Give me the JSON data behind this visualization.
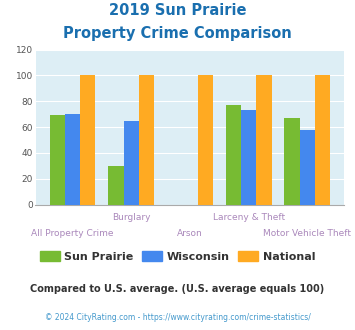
{
  "title_line1": "2019 Sun Prairie",
  "title_line2": "Property Crime Comparison",
  "title_color": "#1a6faf",
  "categories": [
    "All Property Crime",
    "Burglary",
    "Arson",
    "Larceny & Theft",
    "Motor Vehicle Theft"
  ],
  "x_labels_top": [
    "",
    "Burglary",
    "",
    "Larceny & Theft",
    ""
  ],
  "x_labels_bottom": [
    "All Property Crime",
    "",
    "Arson",
    "",
    "Motor Vehicle Theft"
  ],
  "sun_prairie": [
    69,
    30,
    0,
    77,
    67
  ],
  "wisconsin": [
    70,
    65,
    0,
    73,
    58
  ],
  "national": [
    100,
    100,
    100,
    100,
    100
  ],
  "sun_prairie_color": "#77bb33",
  "wisconsin_color": "#4488ee",
  "national_color": "#ffaa22",
  "ylim": [
    0,
    120
  ],
  "yticks": [
    0,
    20,
    40,
    60,
    80,
    100,
    120
  ],
  "background_color": "#ddeef5",
  "legend_labels": [
    "Sun Prairie",
    "Wisconsin",
    "National"
  ],
  "footnote1": "Compared to U.S. average. (U.S. average equals 100)",
  "footnote2": "© 2024 CityRating.com - https://www.cityrating.com/crime-statistics/",
  "footnote1_color": "#333333",
  "footnote2_color": "#4499cc",
  "label_color": "#aa88bb",
  "footnote1_size": 7.0,
  "footnote2_size": 5.5,
  "title_fontsize": 10.5
}
